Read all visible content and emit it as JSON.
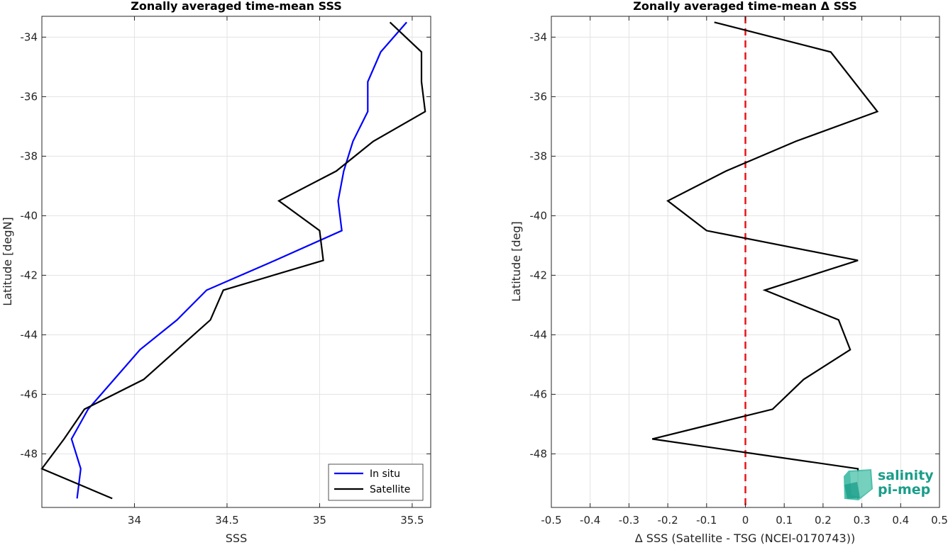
{
  "chart_data": [
    {
      "type": "line",
      "title": "Zonally averaged time-mean SSS",
      "xlabel": "SSS",
      "ylabel": "Latitude [degN]",
      "xlim": [
        33.5,
        35.6
      ],
      "ylim": [
        -49.8,
        -33.3
      ],
      "xticks": [
        34,
        34.5,
        35,
        35.5
      ],
      "xtick_labels": [
        "34",
        "34.5",
        "35",
        "35.5"
      ],
      "yticks": [
        -48,
        -46,
        -44,
        -42,
        -40,
        -38,
        -36,
        -34
      ],
      "ytick_labels": [
        "-48",
        "-46",
        "-44",
        "-42",
        "-40",
        "-38",
        "-36",
        "-34"
      ],
      "grid": true,
      "legend_placement": "bottom-right",
      "series": [
        {
          "name": "In situ",
          "color": "#0000ff",
          "points": [
            {
              "x": 35.47,
              "y": -33.5
            },
            {
              "x": 35.33,
              "y": -34.5
            },
            {
              "x": 35.26,
              "y": -35.5
            },
            {
              "x": 35.26,
              "y": -36.5
            },
            {
              "x": 35.18,
              "y": -37.5
            },
            {
              "x": 35.13,
              "y": -38.5
            },
            {
              "x": 35.1,
              "y": -39.5
            },
            {
              "x": 35.12,
              "y": -40.5
            },
            {
              "x": 34.76,
              "y": -41.5
            },
            {
              "x": 34.39,
              "y": -42.5
            },
            {
              "x": 34.23,
              "y": -43.5
            },
            {
              "x": 34.03,
              "y": -44.5
            },
            {
              "x": 33.89,
              "y": -45.5
            },
            {
              "x": 33.75,
              "y": -46.5
            },
            {
              "x": 33.66,
              "y": -47.5
            },
            {
              "x": 33.71,
              "y": -48.5
            },
            {
              "x": 33.69,
              "y": -49.5
            }
          ]
        },
        {
          "name": "Satellite",
          "color": "#000000",
          "points": [
            {
              "x": 35.38,
              "y": -33.5
            },
            {
              "x": 35.55,
              "y": -34.5
            },
            {
              "x": 35.55,
              "y": -35.5
            },
            {
              "x": 35.57,
              "y": -36.5
            },
            {
              "x": 35.29,
              "y": -37.5
            },
            {
              "x": 35.09,
              "y": -38.5
            },
            {
              "x": 34.78,
              "y": -39.5
            },
            {
              "x": 35.0,
              "y": -40.5
            },
            {
              "x": 35.02,
              "y": -41.5
            },
            {
              "x": 34.48,
              "y": -42.5
            },
            {
              "x": 34.41,
              "y": -43.5
            },
            {
              "x": 34.23,
              "y": -44.5
            },
            {
              "x": 34.05,
              "y": -45.5
            },
            {
              "x": 33.73,
              "y": -46.5
            },
            {
              "x": 33.62,
              "y": -47.5
            },
            {
              "x": 33.5,
              "y": -48.5
            },
            {
              "x": 33.88,
              "y": -49.5
            }
          ]
        }
      ]
    },
    {
      "type": "line",
      "title": "Zonally averaged time-mean Δ SSS",
      "xlabel": "Δ SSS (Satellite - TSG (NCEI-0170743))",
      "ylabel": "Latitude [deg]",
      "xlim": [
        -0.5,
        0.5
      ],
      "ylim": [
        -49.8,
        -33.3
      ],
      "xticks": [
        -0.5,
        -0.4,
        -0.3,
        -0.2,
        -0.1,
        0,
        0.1,
        0.2,
        0.3,
        0.4,
        0.5
      ],
      "xtick_labels": [
        "-0.5",
        "-0.4",
        "-0.3",
        "-0.2",
        "-0.1",
        "0",
        "0.1",
        "0.2",
        "0.3",
        "0.4",
        "0.5"
      ],
      "yticks": [
        -48,
        -46,
        -44,
        -42,
        -40,
        -38,
        -36,
        -34
      ],
      "ytick_labels": [
        "-48",
        "-46",
        "-44",
        "-42",
        "-40",
        "-38",
        "-36",
        "-34"
      ],
      "grid": true,
      "reference_line": {
        "x": 0,
        "color": "#e8141a",
        "style": "dashed"
      },
      "series": [
        {
          "color": "#000000",
          "points": [
            {
              "x": -0.08,
              "y": -33.5
            },
            {
              "x": 0.22,
              "y": -34.5
            },
            {
              "x": 0.34,
              "y": -36.5
            },
            {
              "x": 0.13,
              "y": -37.5
            },
            {
              "x": -0.05,
              "y": -38.5
            },
            {
              "x": -0.2,
              "y": -39.5
            },
            {
              "x": -0.1,
              "y": -40.5
            },
            {
              "x": 0.29,
              "y": -41.5
            },
            {
              "x": 0.05,
              "y": -42.5
            },
            {
              "x": 0.24,
              "y": -43.5
            },
            {
              "x": 0.27,
              "y": -44.5
            },
            {
              "x": 0.15,
              "y": -45.5
            },
            {
              "x": 0.07,
              "y": -46.5
            },
            {
              "x": -0.24,
              "y": -47.5
            },
            {
              "x": 0.29,
              "y": -48.5
            },
            {
              "x": 0.29,
              "y": -49.5
            }
          ]
        }
      ]
    }
  ],
  "logo": {
    "line1": "salinity",
    "line2": "pi-mep",
    "color": "#1a9e8a"
  }
}
